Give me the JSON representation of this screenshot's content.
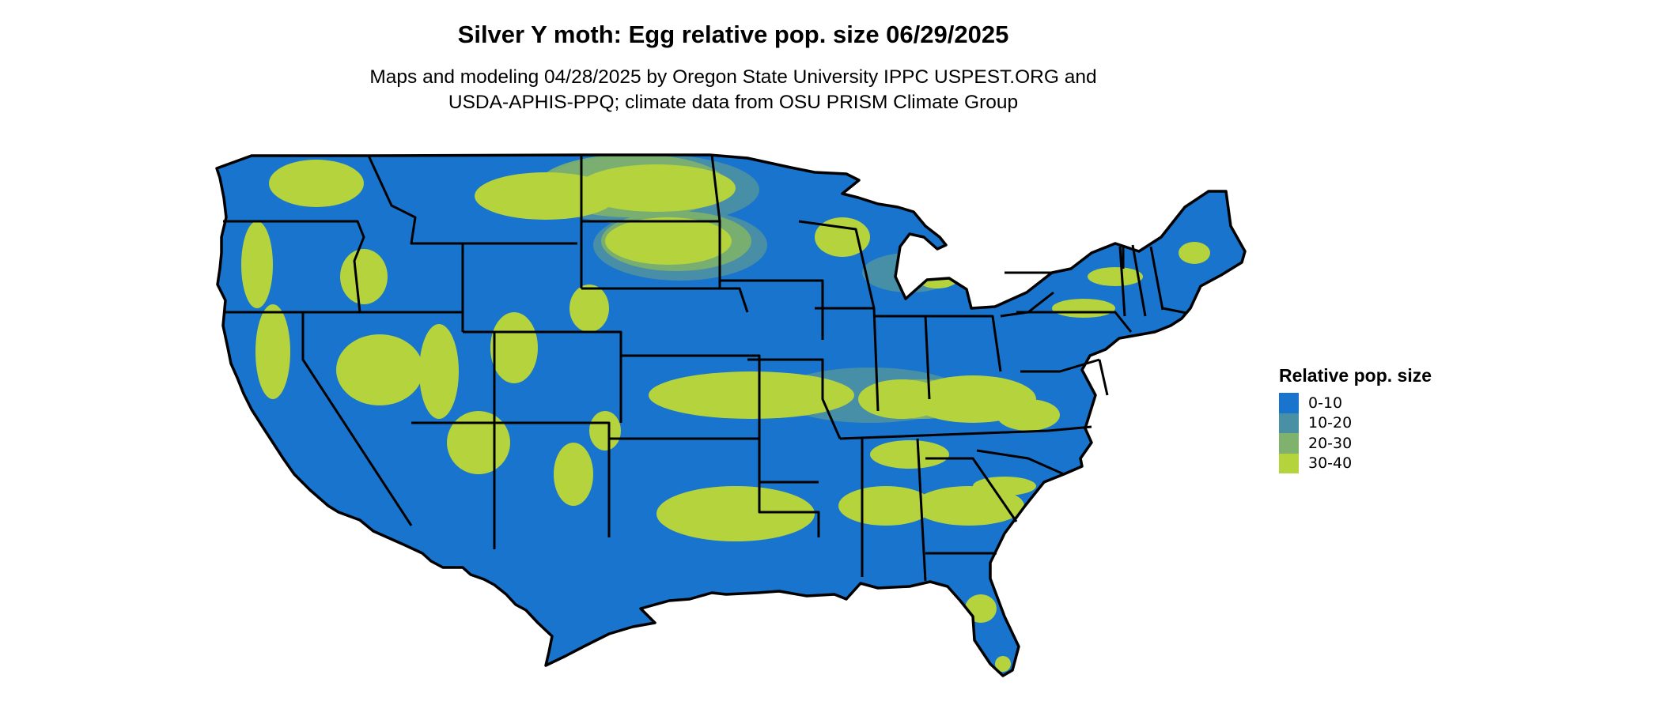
{
  "title": "Silver Y moth: Egg relative pop. size 06/29/2025",
  "subtitle_line1": "Maps and modeling 04/28/2025 by Oregon State University IPPC USPEST.ORG and",
  "subtitle_line2": "USDA-APHIS-PPQ; climate data from OSU PRISM Climate Group",
  "legend": {
    "title": "Relative pop. size",
    "items": [
      {
        "label": "0-10",
        "color": "#1874CD"
      },
      {
        "label": "10-20",
        "color": "#4A90A4"
      },
      {
        "label": "20-30",
        "color": "#7FB26C"
      },
      {
        "label": "30-40",
        "color": "#B5D33D"
      }
    ]
  },
  "map": {
    "region": "conterminous-us",
    "base_color": "#1874CD",
    "high_color": "#B5D33D",
    "state_border_color": "#000000"
  }
}
